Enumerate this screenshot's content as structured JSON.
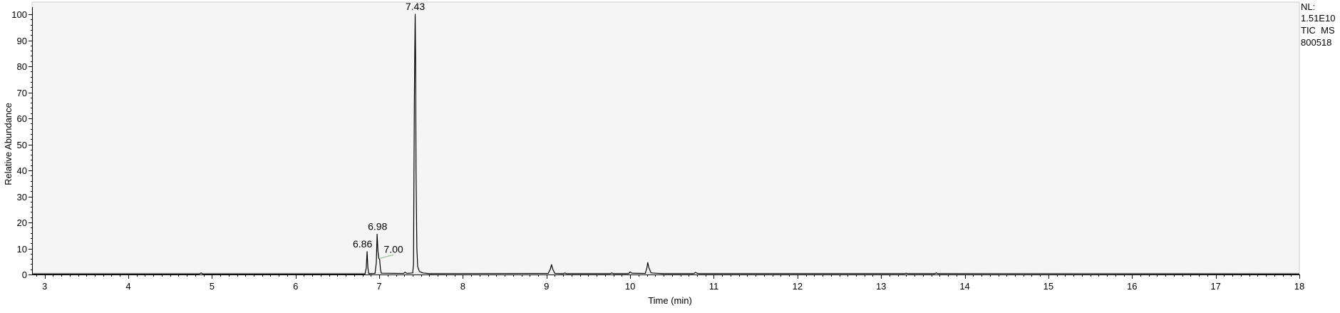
{
  "chart_data": {
    "type": "line",
    "xlabel": "Time (min)",
    "ylabel": "Relative Abundance",
    "xlim": [
      2.85,
      18
    ],
    "ylim": [
      0,
      100
    ],
    "x_ticks": [
      3,
      4,
      5,
      6,
      7,
      8,
      9,
      10,
      11,
      12,
      13,
      14,
      15,
      16,
      17,
      18
    ],
    "y_ticks": [
      0,
      10,
      20,
      30,
      40,
      50,
      60,
      70,
      80,
      90,
      100
    ],
    "grid": false,
    "info": [
      "NL:",
      "1.51E10",
      "TIC  MS",
      "800518"
    ],
    "peak_labels": [
      {
        "text": "7.43",
        "x": 7.43,
        "y": 100
      },
      {
        "text": "6.98",
        "x": 6.98,
        "y": 15.5
      },
      {
        "text": "6.86",
        "x": 6.86,
        "y": 8.8
      },
      {
        "text": "7.00",
        "x": 7.0,
        "y": 6.2
      }
    ],
    "series": [
      {
        "values": [
          [
            2.85,
            0.2
          ],
          [
            4.85,
            0.2
          ],
          [
            4.87,
            0.6
          ],
          [
            4.89,
            0.2
          ],
          [
            6.83,
            0.2
          ],
          [
            6.845,
            2.5
          ],
          [
            6.855,
            8.8
          ],
          [
            6.865,
            2.5
          ],
          [
            6.875,
            0.3
          ],
          [
            6.95,
            0.4
          ],
          [
            6.965,
            4.5
          ],
          [
            6.975,
            15.5
          ],
          [
            6.985,
            9.0
          ],
          [
            6.995,
            6.2
          ],
          [
            7.005,
            5.8
          ],
          [
            7.015,
            2.0
          ],
          [
            7.025,
            0.5
          ],
          [
            7.29,
            0.4
          ],
          [
            7.31,
            0.9
          ],
          [
            7.33,
            0.4
          ],
          [
            7.4,
            0.6
          ],
          [
            7.41,
            4.0
          ],
          [
            7.42,
            66.0
          ],
          [
            7.425,
            85.0
          ],
          [
            7.43,
            100.0
          ],
          [
            7.435,
            83.0
          ],
          [
            7.44,
            40.0
          ],
          [
            7.45,
            10.0
          ],
          [
            7.46,
            3.0
          ],
          [
            7.48,
            1.2
          ],
          [
            7.52,
            0.6
          ],
          [
            7.6,
            0.3
          ],
          [
            9.02,
            0.4
          ],
          [
            9.045,
            2.0
          ],
          [
            9.06,
            3.8
          ],
          [
            9.075,
            2.0
          ],
          [
            9.1,
            0.4
          ],
          [
            9.2,
            0.3
          ],
          [
            9.22,
            0.6
          ],
          [
            9.24,
            0.3
          ],
          [
            9.76,
            0.3
          ],
          [
            9.78,
            0.6
          ],
          [
            9.8,
            0.3
          ],
          [
            9.98,
            0.3
          ],
          [
            10.0,
            1.0
          ],
          [
            10.02,
            0.5
          ],
          [
            10.18,
            0.4
          ],
          [
            10.2,
            2.5
          ],
          [
            10.21,
            4.6
          ],
          [
            10.225,
            2.5
          ],
          [
            10.25,
            0.6
          ],
          [
            10.3,
            0.5
          ],
          [
            10.4,
            0.3
          ],
          [
            10.76,
            0.3
          ],
          [
            10.78,
            0.8
          ],
          [
            10.8,
            0.5
          ],
          [
            10.82,
            0.3
          ],
          [
            13.28,
            0.3
          ],
          [
            13.3,
            0.5
          ],
          [
            13.32,
            0.3
          ],
          [
            13.64,
            0.3
          ],
          [
            13.66,
            0.6
          ],
          [
            13.68,
            0.3
          ],
          [
            18.0,
            0.2
          ]
        ]
      }
    ]
  }
}
